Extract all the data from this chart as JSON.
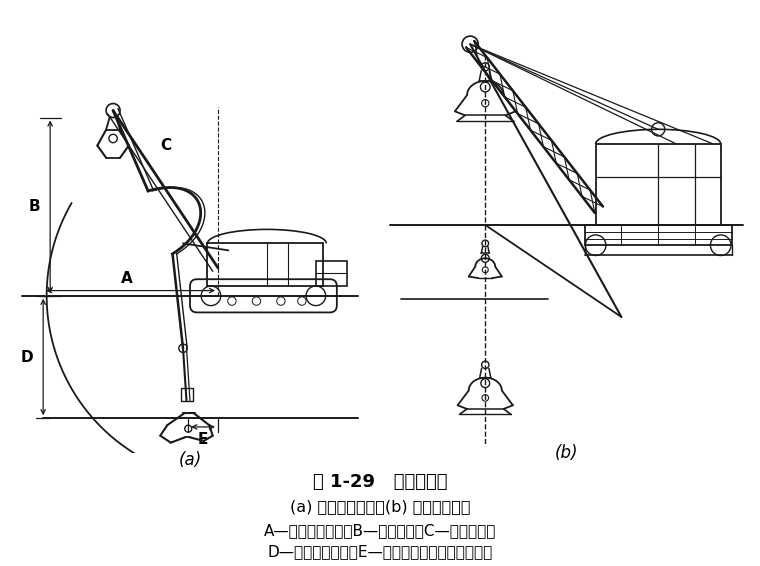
{
  "title": "图 1-29   抓铲挖土机",
  "subtitle": "(a) 液压式抓铲机；(b) 绳索式抓铲机",
  "legend_line1": "A—最大挖土半径；B—卸土高度；C—卸土半径；",
  "legend_line2": "D—最大挖土深度；E—最大挖土深度时的挖土半径",
  "label_a": "(a)",
  "label_b": "(b)",
  "bg_color": "#ffffff",
  "line_color": "#1a1a1a",
  "title_fontsize": 13,
  "sub_fontsize": 12,
  "legend_fontsize": 11.5
}
